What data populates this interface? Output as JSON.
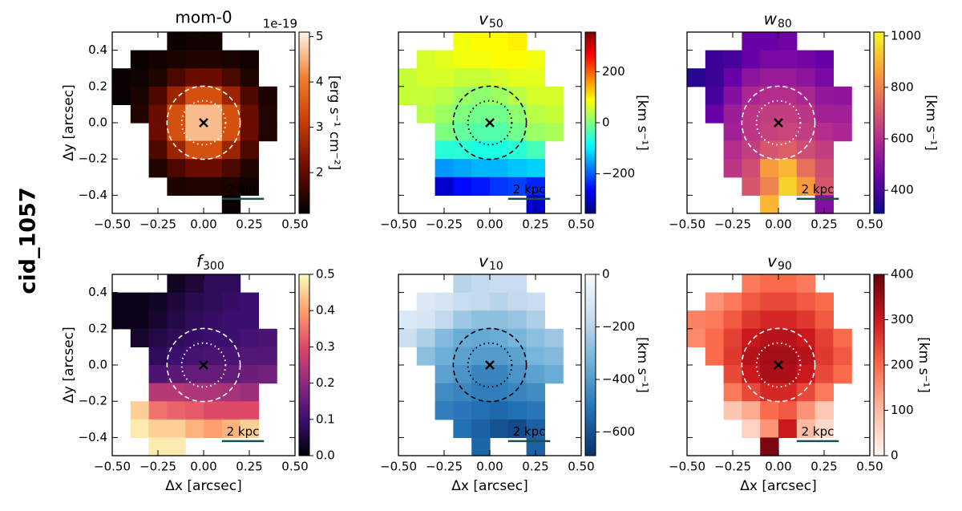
{
  "chart_data": {
    "type": "heatmap",
    "row_label": "cid_1057",
    "xlabel": "Δx [arcsec]",
    "ylabel": "Δy [arcsec]",
    "xlim": [
      -0.5,
      0.5
    ],
    "ylim": [
      -0.5,
      0.5
    ],
    "xticks": [
      {
        "value": -0.5,
        "label": "−0.50"
      },
      {
        "value": -0.25,
        "label": "−0.25"
      },
      {
        "value": 0,
        "label": "0.00"
      },
      {
        "value": 0.25,
        "label": "0.25"
      },
      {
        "value": 0.5,
        "label": "0.50"
      }
    ],
    "yticks": [
      {
        "value": 0.4,
        "label": "0.4"
      },
      {
        "value": 0.2,
        "label": "0.2"
      },
      {
        "value": 0,
        "label": "0.0"
      },
      {
        "value": -0.2,
        "label": "−0.2"
      },
      {
        "value": -0.4,
        "label": "−0.4"
      }
    ],
    "scalebar_label": "2 kpc",
    "panels": [
      {
        "title": "mom-0",
        "offset_label": "1e-19",
        "clabel": "[erg s⁻¹ cm⁻²]",
        "clim": [
          1.1,
          5.1
        ],
        "cticks": [
          2,
          3,
          4,
          5
        ],
        "colormap": [
          "#000000",
          "#6b0c00",
          "#c83c00",
          "#f08030",
          "#fff5e8"
        ],
        "overlay_color": "#ffffff",
        "values": [
          [
            null,
            null,
            null,
            1.2,
            1.25,
            1.25,
            null,
            null,
            null,
            null
          ],
          [
            null,
            1.2,
            1.25,
            1.35,
            1.4,
            1.4,
            1.35,
            1.25,
            null,
            null
          ],
          [
            1.2,
            1.25,
            1.4,
            1.8,
            2.1,
            2.1,
            1.8,
            1.4,
            null,
            null
          ],
          [
            1.2,
            1.35,
            1.8,
            2.6,
            3.4,
            3.4,
            2.6,
            1.8,
            1.35,
            null
          ],
          [
            null,
            1.4,
            2.1,
            3.4,
            4.6,
            4.6,
            3.4,
            2.1,
            1.4,
            null
          ],
          [
            null,
            null,
            2.1,
            3.4,
            4.6,
            4.6,
            3.4,
            2.1,
            1.4,
            null
          ],
          [
            null,
            null,
            1.8,
            2.6,
            3.4,
            3.4,
            2.6,
            1.8,
            null,
            null
          ],
          [
            null,
            null,
            1.4,
            1.8,
            2.1,
            2.1,
            1.8,
            1.4,
            null,
            null
          ],
          [
            null,
            null,
            null,
            1.35,
            1.4,
            1.4,
            1.35,
            1.25,
            null,
            null
          ],
          [
            null,
            null,
            null,
            null,
            null,
            null,
            1.2,
            null,
            null,
            null
          ]
        ]
      },
      {
        "title": "v",
        "title_subscript": "50",
        "clabel": "[km s⁻¹]",
        "clim": [
          -355,
          355
        ],
        "cticks": [
          {
            "value": -200,
            "label": "−200"
          },
          0,
          200
        ],
        "colormap": [
          "#00007f",
          "#0000ff",
          "#007fff",
          "#00ffff",
          "#7fff7f",
          "#ffff00",
          "#ff7f00",
          "#ff0000",
          "#7f0000"
        ],
        "overlay_color": "#000000",
        "values": [
          [
            null,
            null,
            null,
            80,
            90,
            90,
            100,
            null,
            null,
            null
          ],
          [
            null,
            60,
            70,
            80,
            80,
            90,
            90,
            80,
            null,
            null
          ],
          [
            50,
            60,
            60,
            50,
            50,
            60,
            70,
            70,
            null,
            null
          ],
          [
            50,
            50,
            40,
            20,
            10,
            20,
            40,
            60,
            60,
            null
          ],
          [
            null,
            40,
            20,
            0,
            -10,
            -10,
            10,
            40,
            50,
            null
          ],
          [
            null,
            null,
            0,
            -20,
            -30,
            -30,
            -10,
            20,
            30,
            null
          ],
          [
            null,
            null,
            -60,
            -60,
            -70,
            -70,
            -60,
            -40,
            null,
            null
          ],
          [
            null,
            null,
            -160,
            -150,
            -140,
            -140,
            -130,
            -120,
            null,
            null
          ],
          [
            null,
            null,
            -300,
            -260,
            -250,
            -230,
            -220,
            -240,
            null,
            null
          ],
          [
            null,
            null,
            null,
            null,
            null,
            null,
            null,
            -300,
            null,
            null
          ]
        ]
      },
      {
        "title": "w",
        "title_subscript": "80",
        "clabel": "[km s⁻¹]",
        "clim": [
          310,
          1015
        ],
        "cticks": [
          400,
          600,
          800,
          1000
        ],
        "colormap": [
          "#0d0887",
          "#6a00a8",
          "#b12a90",
          "#e16462",
          "#fca636",
          "#f0f921"
        ],
        "overlay_color": "#ffffff",
        "values": [
          [
            null,
            null,
            null,
            450,
            450,
            460,
            null,
            null,
            null,
            null
          ],
          [
            null,
            380,
            400,
            450,
            480,
            480,
            470,
            450,
            null,
            null
          ],
          [
            350,
            380,
            450,
            520,
            540,
            540,
            520,
            480,
            null,
            null
          ],
          [
            null,
            400,
            500,
            580,
            600,
            600,
            580,
            530,
            520,
            null
          ],
          [
            null,
            450,
            550,
            620,
            640,
            640,
            620,
            560,
            560,
            null
          ],
          [
            null,
            null,
            560,
            620,
            650,
            660,
            640,
            600,
            580,
            null
          ],
          [
            null,
            null,
            600,
            640,
            700,
            720,
            680,
            640,
            null,
            null
          ],
          [
            null,
            null,
            620,
            680,
            850,
            900,
            760,
            680,
            null,
            null
          ],
          [
            null,
            null,
            null,
            700,
            800,
            950,
            850,
            700,
            null,
            null
          ],
          [
            null,
            null,
            null,
            null,
            900,
            null,
            null,
            500,
            null,
            null
          ]
        ]
      },
      {
        "title": "f",
        "title_subscript": "300",
        "clim": [
          0,
          0.5
        ],
        "cticks": [
          {
            "value": 0,
            "label": "0.0"
          },
          0.1,
          0.2,
          0.3,
          0.4,
          0.5
        ],
        "colormap": [
          "#000004",
          "#3b0f70",
          "#8c2981",
          "#de4968",
          "#fe9f6d",
          "#fcfdbf"
        ],
        "overlay_color": "#ffffff",
        "values": [
          [
            null,
            null,
            null,
            0.03,
            0.05,
            0.08,
            0.08,
            null,
            null,
            null
          ],
          [
            0.02,
            0.02,
            0.03,
            0.05,
            0.07,
            0.08,
            0.09,
            0.1,
            null,
            null
          ],
          [
            0.02,
            0.02,
            0.04,
            0.06,
            0.08,
            0.09,
            0.1,
            0.1,
            null,
            null
          ],
          [
            null,
            0.04,
            0.06,
            0.08,
            0.09,
            0.1,
            0.1,
            0.11,
            0.12,
            null
          ],
          [
            null,
            null,
            0.08,
            0.1,
            0.11,
            0.12,
            0.12,
            0.13,
            0.13,
            null
          ],
          [
            null,
            null,
            0.12,
            0.14,
            0.15,
            0.15,
            0.15,
            0.16,
            0.17,
            null
          ],
          [
            null,
            null,
            0.25,
            0.25,
            0.24,
            0.24,
            0.23,
            0.22,
            null,
            null
          ],
          [
            null,
            0.45,
            0.35,
            0.33,
            0.32,
            0.3,
            0.3,
            0.3,
            null,
            null
          ],
          [
            null,
            0.48,
            0.45,
            0.45,
            0.42,
            0.4,
            0.42,
            0.45,
            null,
            null
          ],
          [
            null,
            null,
            0.48,
            0.48,
            null,
            null,
            null,
            null,
            null,
            null
          ]
        ]
      },
      {
        "title": "v",
        "title_subscript": "10",
        "clabel": "[km s⁻¹]",
        "clim": [
          -690,
          0
        ],
        "cticks": [
          {
            "value": -600,
            "label": "−600"
          },
          {
            "value": -400,
            "label": "−400"
          },
          {
            "value": -200,
            "label": "−200"
          },
          0
        ],
        "colormap": [
          "#08306b",
          "#2171b5",
          "#6baed6",
          "#c6dbef",
          "#f7fbff"
        ],
        "overlay_color": "#000000",
        "values": [
          [
            null,
            null,
            null,
            -200,
            -180,
            -160,
            -160,
            null,
            null,
            null
          ],
          [
            null,
            -100,
            -120,
            -160,
            -180,
            -200,
            -180,
            -160,
            null,
            null
          ],
          [
            -100,
            -120,
            -180,
            -250,
            -280,
            -280,
            -260,
            -220,
            null,
            null
          ],
          [
            -150,
            -220,
            -300,
            -350,
            -360,
            -350,
            -320,
            -280,
            -250,
            null
          ],
          [
            null,
            -280,
            -340,
            -380,
            -400,
            -400,
            -380,
            -320,
            -300,
            null
          ],
          [
            null,
            null,
            -380,
            -420,
            -460,
            -460,
            -420,
            -380,
            -350,
            null
          ],
          [
            null,
            null,
            -440,
            -460,
            -480,
            -480,
            -460,
            -440,
            null,
            null
          ],
          [
            null,
            null,
            -480,
            -500,
            -520,
            -540,
            -520,
            -500,
            null,
            null
          ],
          [
            null,
            null,
            null,
            -520,
            -560,
            -600,
            -620,
            -560,
            null,
            null
          ],
          [
            null,
            null,
            null,
            null,
            -550,
            null,
            null,
            -560,
            null,
            null
          ]
        ]
      },
      {
        "title": "v",
        "title_subscript": "90",
        "clabel": "[km s⁻¹]",
        "clim": [
          0,
          400
        ],
        "cticks": [
          0,
          100,
          200,
          300,
          400
        ],
        "colormap": [
          "#fff5f0",
          "#fcbba1",
          "#fb6a4a",
          "#cb181d",
          "#67000d"
        ],
        "overlay_color": "#ffffff",
        "values": [
          [
            null,
            null,
            null,
            180,
            200,
            200,
            180,
            null,
            null,
            null
          ],
          [
            null,
            150,
            180,
            220,
            240,
            240,
            220,
            200,
            null,
            null
          ],
          [
            170,
            180,
            220,
            260,
            280,
            280,
            260,
            220,
            null,
            null
          ],
          [
            160,
            200,
            250,
            300,
            320,
            320,
            300,
            250,
            200,
            null
          ],
          [
            null,
            200,
            260,
            320,
            340,
            340,
            320,
            260,
            220,
            null
          ],
          [
            null,
            null,
            240,
            300,
            330,
            330,
            300,
            240,
            200,
            null
          ],
          [
            null,
            null,
            180,
            240,
            280,
            280,
            240,
            180,
            null,
            null
          ],
          [
            null,
            null,
            80,
            120,
            200,
            220,
            150,
            80,
            null,
            null
          ],
          [
            null,
            null,
            null,
            60,
            150,
            300,
            100,
            50,
            null,
            null
          ],
          [
            null,
            null,
            null,
            null,
            380,
            null,
            null,
            null,
            null,
            null
          ]
        ]
      }
    ]
  }
}
